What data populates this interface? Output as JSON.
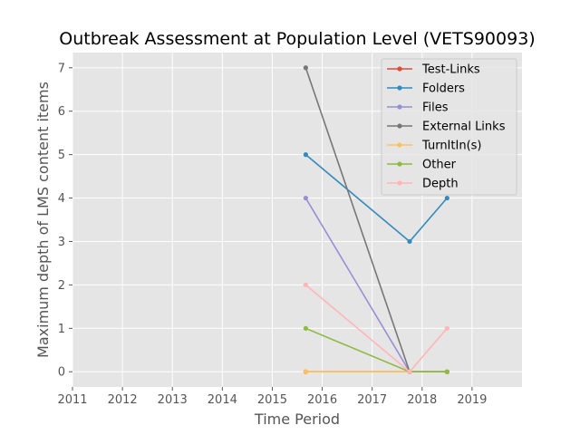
{
  "chart_data": {
    "type": "line",
    "title": "Outbreak Assessment at Population Level (VETS90093)",
    "xlabel": "Time Period",
    "ylabel": "Maximum depth of LMS content items",
    "xlim": [
      2011,
      2020
    ],
    "ylim": [
      -0.35,
      7.35
    ],
    "xticks": [
      2011,
      2012,
      2013,
      2014,
      2015,
      2016,
      2017,
      2018,
      2019
    ],
    "yticks": [
      0,
      1,
      2,
      3,
      4,
      5,
      6,
      7
    ],
    "grid": true,
    "legend_position": "top-right",
    "x": [
      2015.67,
      2017.75,
      2018.5
    ],
    "series": [
      {
        "name": "Test-Links",
        "color": "#E24A33",
        "values": [
          0,
          0,
          0
        ]
      },
      {
        "name": "Folders",
        "color": "#348ABD",
        "values": [
          5,
          3,
          4
        ]
      },
      {
        "name": "Files",
        "color": "#988ED5",
        "values": [
          4,
          0,
          0
        ]
      },
      {
        "name": "External Links",
        "color": "#777777",
        "values": [
          7,
          0,
          0
        ]
      },
      {
        "name": "TurnItIn(s)",
        "color": "#FBC15E",
        "values": [
          0,
          0,
          0
        ]
      },
      {
        "name": "Other",
        "color": "#8EBA42",
        "values": [
          1,
          0,
          0
        ]
      },
      {
        "name": "Depth",
        "color": "#FFB5B8",
        "values": [
          2,
          0,
          1
        ]
      }
    ]
  }
}
